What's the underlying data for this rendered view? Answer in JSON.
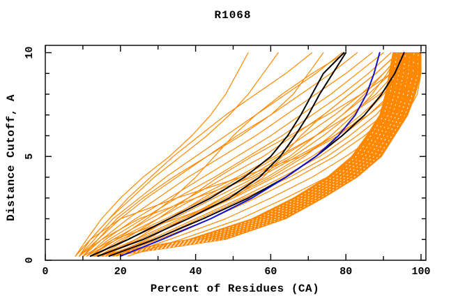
{
  "chart_data": {
    "type": "line",
    "title": "R1068",
    "xlabel": "Percent of Residues (CA)",
    "ylabel": "Distance Cutoff, A",
    "xlim": [
      0,
      101.5
    ],
    "ylim": [
      0,
      10.35
    ],
    "x_ticks_major": [
      0,
      20,
      40,
      60,
      80,
      100
    ],
    "x_tick_minor_step": 10,
    "y_ticks_major": [
      0,
      5,
      10
    ],
    "y_tick_minor_step": 1,
    "grid": false,
    "legend": "none",
    "colors": {
      "frame": "#000000",
      "orange": "#ff8800",
      "black": "#000000",
      "blue": "#1111cc",
      "background": "#ffffff",
      "band_texture": "#ffffff"
    },
    "cutoffs": [
      0.2,
      1,
      2,
      3,
      4,
      5,
      6,
      7,
      8,
      9,
      10
    ],
    "series": [
      {
        "name": "predictions-orange",
        "role": "ensemble of prediction curves (percent of CA residues under each distance cutoff)",
        "color": "#ff8800",
        "width": 1.2,
        "curves": [
          [
            8,
            11,
            15,
            20,
            26,
            33,
            39,
            44,
            48,
            51,
            54
          ],
          [
            8,
            12,
            17,
            23,
            29,
            36,
            43,
            49,
            54,
            58,
            62
          ],
          [
            9,
            12,
            17,
            22,
            28,
            34,
            41,
            48,
            56,
            64,
            71
          ],
          [
            9,
            13,
            18,
            25,
            32,
            40,
            48,
            56,
            64,
            72,
            79
          ],
          [
            10,
            14,
            20,
            27,
            35,
            43,
            51,
            60,
            68,
            76,
            83
          ],
          [
            10,
            15,
            22,
            30,
            38,
            47,
            56,
            64,
            72,
            80,
            87
          ],
          [
            11,
            16,
            24,
            33,
            42,
            51,
            60,
            68,
            76,
            83,
            90
          ],
          [
            11,
            17,
            26,
            35,
            45,
            54,
            63,
            71,
            79,
            86,
            92
          ],
          [
            12,
            18,
            28,
            38,
            48,
            58,
            66,
            74,
            81,
            88,
            94
          ],
          [
            12,
            19,
            30,
            40,
            51,
            61,
            69,
            77,
            84,
            90,
            95
          ],
          [
            13,
            20,
            32,
            43,
            54,
            63,
            72,
            79,
            86,
            92,
            96
          ],
          [
            14,
            22,
            34,
            45,
            56,
            66,
            74,
            81,
            88,
            93,
            97
          ],
          [
            14,
            24,
            36,
            48,
            59,
            68,
            77,
            84,
            90,
            95,
            98
          ],
          [
            15,
            26,
            38,
            50,
            61,
            71,
            79,
            86,
            92,
            96,
            99
          ],
          [
            16,
            28,
            40,
            52,
            63,
            73,
            81,
            88,
            93,
            97,
            100
          ],
          [
            18,
            30,
            44,
            56,
            67,
            77,
            85,
            91,
            95,
            98,
            100
          ],
          [
            20,
            33,
            48,
            60,
            71,
            80,
            88,
            93,
            97,
            99,
            100
          ],
          [
            22,
            36,
            52,
            64,
            75,
            84,
            91,
            96,
            99,
            100,
            100
          ],
          [
            10,
            18,
            35,
            50,
            58,
            63,
            68,
            74,
            81,
            88,
            94
          ],
          [
            9,
            15,
            25,
            40,
            55,
            65,
            72,
            79,
            85,
            90,
            95
          ],
          [
            13,
            21,
            30,
            38,
            46,
            55,
            65,
            75,
            84,
            92,
            98
          ],
          [
            16,
            24,
            33,
            42,
            52,
            62,
            72,
            81,
            89,
            95,
            99
          ],
          [
            17,
            27,
            37,
            47,
            57,
            67,
            77,
            86,
            93,
            98,
            100
          ],
          [
            19,
            29,
            41,
            53,
            65,
            75,
            83,
            90,
            96,
            99,
            100
          ],
          [
            8,
            12,
            20,
            35,
            52,
            68,
            78,
            85,
            90,
            94,
            97
          ],
          [
            11,
            19,
            27,
            34,
            40,
            45,
            50,
            56,
            63,
            71,
            80
          ],
          [
            9,
            14,
            19,
            26,
            34,
            43,
            52,
            60,
            66,
            70,
            74
          ],
          [
            15,
            25,
            37,
            49,
            60,
            69,
            76,
            82,
            87,
            91,
            94
          ]
        ]
      },
      {
        "name": "dense-band-orange",
        "role": "dense bundle of overlapping orange curves (solid filled band)",
        "color": "#ff8800",
        "band_left": [
          12,
          38,
          55,
          66,
          75,
          81.5,
          85.5,
          89,
          90.5,
          91.5,
          92.5
        ],
        "band_right": [
          18,
          48,
          64,
          74,
          83,
          89.5,
          93,
          96.5,
          98.5,
          100,
          100
        ]
      },
      {
        "name": "reference-black",
        "role": "reference curves",
        "color": "#000000",
        "width": 2,
        "curves": [
          [
            12,
            22,
            33,
            44,
            53,
            60,
            64.5,
            68,
            71,
            74,
            79.5
          ],
          [
            14,
            26,
            38,
            49,
            57,
            62.5,
            66.5,
            70,
            73,
            76.5,
            80
          ],
          [
            17,
            29,
            42,
            54,
            64,
            72,
            79,
            85,
            89.5,
            93,
            95.5
          ]
        ]
      },
      {
        "name": "highlight-blue",
        "role": "highlighted model curve",
        "color": "#1111cc",
        "width": 2,
        "curves": [
          [
            20,
            31,
            44,
            55,
            64,
            72,
            78,
            82.5,
            85.5,
            87.5,
            89
          ]
        ]
      }
    ]
  }
}
